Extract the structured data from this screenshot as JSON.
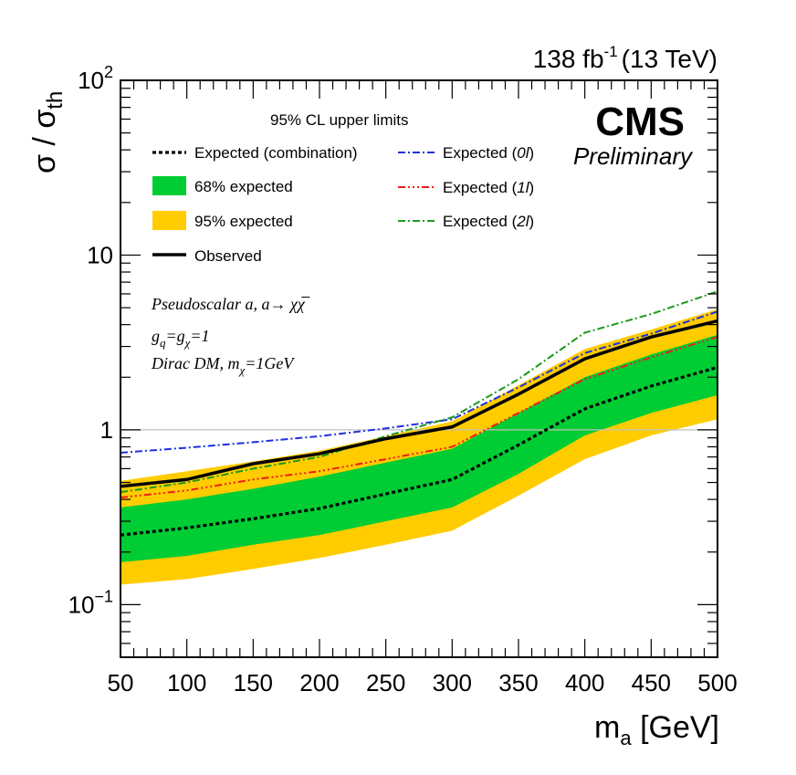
{
  "chart_data": {
    "type": "line",
    "lumi_text": {
      "base": "138 fb",
      "exp": "-1",
      "energy": "(13 TeV)"
    },
    "experiment": "CMS",
    "status": "Preliminary",
    "ylabel": {
      "sigma": "σ",
      "slash": " / ",
      "sigma2": "σ",
      "sub": "th"
    },
    "xlabel": {
      "m": "m",
      "sub": "a",
      "unit": " [GeV]"
    },
    "xlim": [
      50,
      500
    ],
    "ylim": [
      0.05,
      100
    ],
    "yscale": "log",
    "x_ticks": [
      "50",
      "100",
      "150",
      "200",
      "250",
      "300",
      "350",
      "400",
      "450",
      "500"
    ],
    "y_ticks": [
      {
        "value": 0.1,
        "base": "10",
        "exp": "−1"
      },
      {
        "value": 1,
        "base": "1",
        "exp": ""
      },
      {
        "value": 10,
        "base": "10",
        "exp": ""
      },
      {
        "value": 100,
        "base": "10",
        "exp": "2"
      }
    ],
    "reference_line": 1,
    "legend_header": "95% CL upper limits",
    "legend": {
      "expected_comb": "Expected (combination)",
      "band68": "68% expected",
      "band95": "95% expected",
      "observed": "Observed",
      "exp0l": {
        "pre": "Expected (",
        "it": "0l",
        "post": ")"
      },
      "exp1l": {
        "pre": "Expected (",
        "it": "1l",
        "post": ")"
      },
      "exp2l": {
        "pre": "Expected (",
        "it": "2l",
        "post": ")"
      }
    },
    "model": {
      "line1": "Pseudoscalar a, a→ χχ̅",
      "line2_a": "g",
      "line2_sub1": "q",
      "line2_b": "=g",
      "line2_sub2": "χ",
      "line2_c": "=1",
      "line3_a": "Dirac DM, m",
      "line3_sub": "χ",
      "line3_b": "=1GeV"
    },
    "x": [
      50,
      100,
      150,
      200,
      250,
      300,
      350,
      400,
      450,
      500
    ],
    "band95_low": [
      0.13,
      0.14,
      0.16,
      0.185,
      0.22,
      0.265,
      0.42,
      0.68,
      0.93,
      1.15
    ],
    "band95_high": [
      0.51,
      0.58,
      0.66,
      0.76,
      0.92,
      1.12,
      1.8,
      2.9,
      3.75,
      4.9
    ],
    "band68_low": [
      0.175,
      0.19,
      0.22,
      0.25,
      0.3,
      0.36,
      0.56,
      0.93,
      1.25,
      1.58
    ],
    "band68_high": [
      0.36,
      0.4,
      0.46,
      0.54,
      0.65,
      0.78,
      1.25,
      2.0,
      2.7,
      3.5
    ],
    "series": [
      {
        "name": "Expected (combination)",
        "color": "#000000",
        "dash": "4,3",
        "width": 3.2,
        "values": [
          0.25,
          0.275,
          0.31,
          0.355,
          0.43,
          0.52,
          0.82,
          1.32,
          1.78,
          2.28
        ]
      },
      {
        "name": "Observed",
        "color": "#000000",
        "dash": "",
        "width": 3.5,
        "values": [
          0.475,
          0.52,
          0.64,
          0.73,
          0.89,
          1.04,
          1.6,
          2.55,
          3.4,
          4.2
        ]
      },
      {
        "name": "Expected (0l)",
        "color": "#1f2fe0",
        "dash": "8,3,2,3",
        "width": 2,
        "values": [
          0.74,
          0.79,
          0.85,
          0.92,
          1.02,
          1.15,
          1.75,
          2.75,
          3.55,
          4.75
        ]
      },
      {
        "name": "Expected (1l)",
        "color": "#ee1c1c",
        "dash": "8,3,2,3,2,3,2,3",
        "width": 2,
        "values": [
          0.41,
          0.45,
          0.52,
          0.58,
          0.68,
          0.8,
          1.25,
          1.95,
          2.6,
          3.4
        ]
      },
      {
        "name": "Expected (2l)",
        "color": "#1a9a1a",
        "dash": "8,3,2,3",
        "width": 2,
        "values": [
          0.44,
          0.5,
          0.6,
          0.7,
          0.92,
          1.18,
          1.95,
          3.6,
          4.6,
          6.2
        ]
      }
    ],
    "colors": {
      "band95": "#ffcc00",
      "band68": "#00cc33",
      "refline": "#bfbfbf"
    }
  }
}
